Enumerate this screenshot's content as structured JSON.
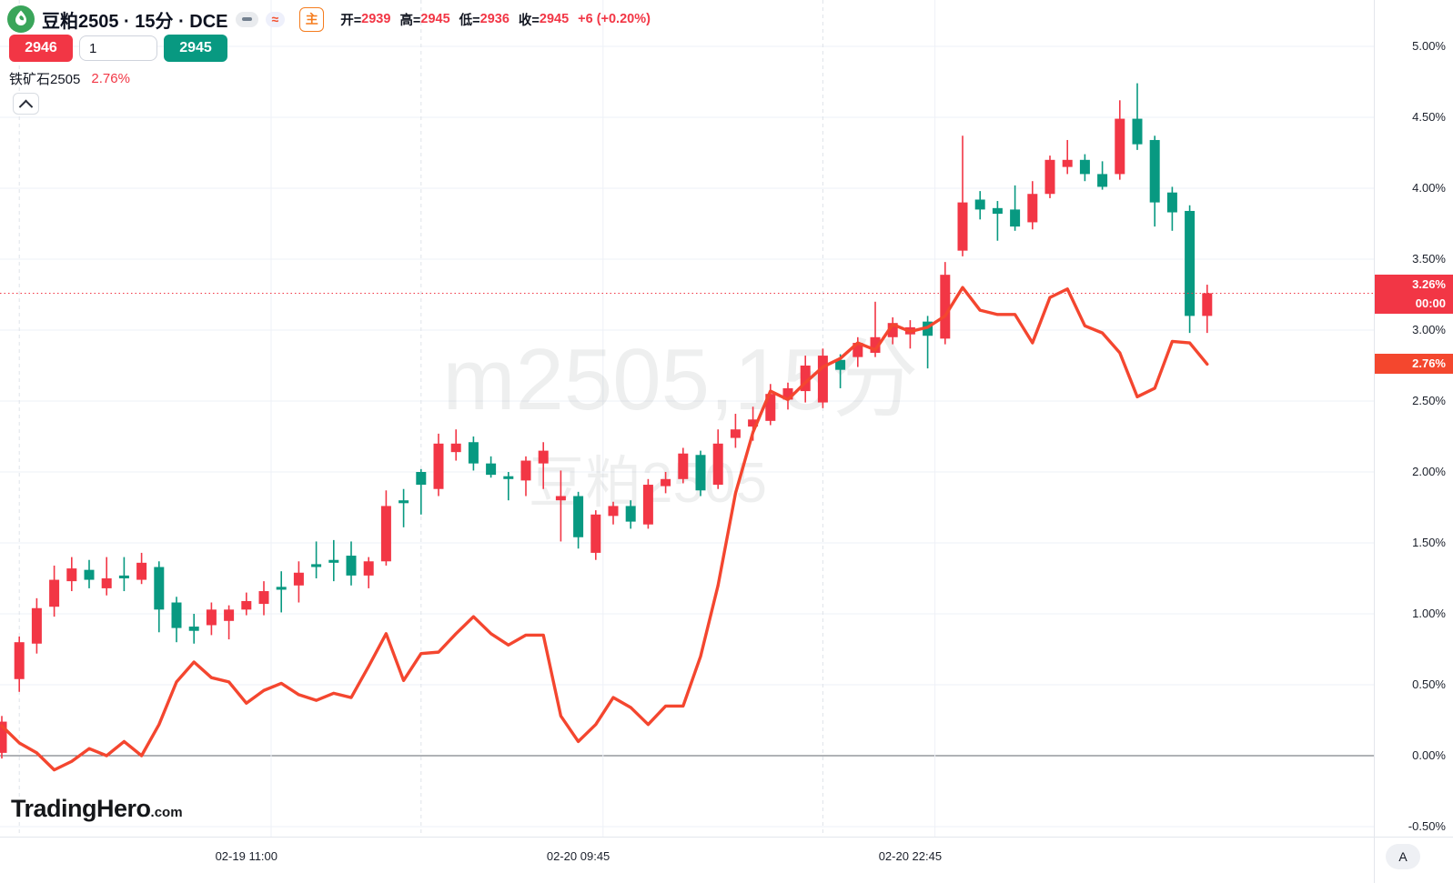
{
  "header": {
    "title": "豆粕2505 · 15分 · DCE",
    "badges": {
      "minimize": "dash",
      "approx": "≈",
      "main": "主"
    },
    "ohlc": [
      {
        "label": "开=",
        "value": "2939"
      },
      {
        "label": "高=",
        "value": "2945"
      },
      {
        "label": "低=",
        "value": "2936"
      },
      {
        "label": "收=",
        "value": "2945"
      }
    ],
    "change": "+6 (+0.20%)",
    "sell_button": "2946",
    "qty_input": "1",
    "buy_button": "2945"
  },
  "legend": {
    "compare_name": "铁矿石2505",
    "compare_value": "2.76%"
  },
  "watermark": {
    "line1": "m2505,15分",
    "line2": "豆粕2505"
  },
  "brand": {
    "name": "TradingHero",
    "suffix": ".com"
  },
  "price_axis": {
    "current_badge": {
      "value": "3.26%",
      "countdown": "00:00"
    },
    "compare_badge": "2.76%"
  },
  "corner_button": "A",
  "colors": {
    "up": "#f23645",
    "down": "#089981",
    "compare_line": "#f4462f",
    "grid": "#eef1f7",
    "grid_dashed": "#dfe3e9",
    "zero_line": "#5f646e",
    "dotted_line": "#f23645",
    "current_badge_bg": "#f23645",
    "compare_badge_bg": "#f4472e",
    "watermark": "#131722",
    "logo_green": "#3aa55a",
    "accent_orange": "#f57c1e"
  },
  "chart_data": {
    "type": "candlestick",
    "title": "豆粕2505 15分 DCE (m2505) with compare line 铁矿石2505",
    "unit": "percent_change",
    "ylabel": "%",
    "ylim": [
      -0.75,
      5.25
    ],
    "grid": true,
    "current_value_pct": 3.26,
    "compare_value_pct": 2.76,
    "y_ticks": [
      {
        "pct": 5.0,
        "label": "5.00%"
      },
      {
        "pct": 4.5,
        "label": "4.50%"
      },
      {
        "pct": 4.0,
        "label": "4.00%"
      },
      {
        "pct": 3.5,
        "label": "3.50%"
      },
      {
        "pct": 3.0,
        "label": "3.00%"
      },
      {
        "pct": 2.5,
        "label": "2.50%"
      },
      {
        "pct": 2.0,
        "label": "2.00%"
      },
      {
        "pct": 1.5,
        "label": "1.50%"
      },
      {
        "pct": 1.0,
        "label": "1.00%"
      },
      {
        "pct": 0.5,
        "label": "0.50%"
      },
      {
        "pct": 0.0,
        "label": "0.00%"
      },
      {
        "pct": -0.5,
        "label": "-0.50%"
      }
    ],
    "x_labels": [
      {
        "text": "02-19 11:00",
        "index": 14
      },
      {
        "text": "02-20 09:45",
        "index": 33
      },
      {
        "text": "02-20 22:45",
        "index": 52
      }
    ],
    "v_grid_dashed_index": [
      1,
      24,
      47
    ],
    "v_grid_solid_index": [
      15,
      34,
      53
    ],
    "candles_ohlc_pct": [
      [
        0.02,
        0.28,
        -0.02,
        0.24
      ],
      [
        0.54,
        0.84,
        0.45,
        0.8
      ],
      [
        0.79,
        1.11,
        0.72,
        1.04
      ],
      [
        1.05,
        1.34,
        0.98,
        1.24
      ],
      [
        1.23,
        1.4,
        1.16,
        1.32
      ],
      [
        1.31,
        1.38,
        1.18,
        1.24
      ],
      [
        1.18,
        1.4,
        1.13,
        1.25
      ],
      [
        1.27,
        1.4,
        1.16,
        1.25
      ],
      [
        1.24,
        1.43,
        1.21,
        1.36
      ],
      [
        1.33,
        1.37,
        0.87,
        1.03
      ],
      [
        1.08,
        1.12,
        0.8,
        0.9
      ],
      [
        0.91,
        1.0,
        0.79,
        0.88
      ],
      [
        0.92,
        1.08,
        0.85,
        1.03
      ],
      [
        0.95,
        1.06,
        0.82,
        1.03
      ],
      [
        1.03,
        1.15,
        0.99,
        1.09
      ],
      [
        1.07,
        1.23,
        0.99,
        1.16
      ],
      [
        1.19,
        1.3,
        1.01,
        1.17
      ],
      [
        1.2,
        1.37,
        1.08,
        1.29
      ],
      [
        1.35,
        1.51,
        1.25,
        1.33
      ],
      [
        1.38,
        1.52,
        1.23,
        1.36
      ],
      [
        1.41,
        1.51,
        1.2,
        1.27
      ],
      [
        1.27,
        1.4,
        1.18,
        1.37
      ],
      [
        1.37,
        1.87,
        1.34,
        1.76
      ],
      [
        1.8,
        1.88,
        1.61,
        1.78
      ],
      [
        2.0,
        2.02,
        1.7,
        1.91
      ],
      [
        1.88,
        2.27,
        1.83,
        2.2
      ],
      [
        2.14,
        2.3,
        2.08,
        2.2
      ],
      [
        2.21,
        2.25,
        2.01,
        2.06
      ],
      [
        2.06,
        2.11,
        1.96,
        1.98
      ],
      [
        1.97,
        2.0,
        1.8,
        1.95
      ],
      [
        1.94,
        2.11,
        1.83,
        2.08
      ],
      [
        2.06,
        2.21,
        1.88,
        2.15
      ],
      [
        1.8,
        2.01,
        1.51,
        1.83
      ],
      [
        1.83,
        1.86,
        1.46,
        1.54
      ],
      [
        1.43,
        1.73,
        1.38,
        1.7
      ],
      [
        1.69,
        1.79,
        1.63,
        1.76
      ],
      [
        1.76,
        1.8,
        1.6,
        1.65
      ],
      [
        1.63,
        1.95,
        1.6,
        1.91
      ],
      [
        1.9,
        2.0,
        1.85,
        1.95
      ],
      [
        1.95,
        2.17,
        1.92,
        2.13
      ],
      [
        2.12,
        2.15,
        1.83,
        1.87
      ],
      [
        1.91,
        2.3,
        1.88,
        2.2
      ],
      [
        2.24,
        2.41,
        2.17,
        2.3
      ],
      [
        2.32,
        2.46,
        2.22,
        2.37
      ],
      [
        2.36,
        2.62,
        2.33,
        2.55
      ],
      [
        2.51,
        2.63,
        2.44,
        2.59
      ],
      [
        2.57,
        2.82,
        2.49,
        2.75
      ],
      [
        2.49,
        2.87,
        2.45,
        2.82
      ],
      [
        2.79,
        2.83,
        2.59,
        2.72
      ],
      [
        2.81,
        2.95,
        2.74,
        2.91
      ],
      [
        2.84,
        3.2,
        2.81,
        2.95
      ],
      [
        2.95,
        3.09,
        2.9,
        3.05
      ],
      [
        2.97,
        3.07,
        2.87,
        3.02
      ],
      [
        3.06,
        3.1,
        2.73,
        2.96
      ],
      [
        2.94,
        3.48,
        2.9,
        3.39
      ],
      [
        3.56,
        4.37,
        3.52,
        3.9
      ],
      [
        3.92,
        3.98,
        3.78,
        3.85
      ],
      [
        3.86,
        3.91,
        3.63,
        3.82
      ],
      [
        3.85,
        4.02,
        3.7,
        3.73
      ],
      [
        3.76,
        4.05,
        3.71,
        3.96
      ],
      [
        3.96,
        4.23,
        3.93,
        4.2
      ],
      [
        4.15,
        4.34,
        4.1,
        4.2
      ],
      [
        4.2,
        4.24,
        4.05,
        4.1
      ],
      [
        4.1,
        4.19,
        3.99,
        4.01
      ],
      [
        4.1,
        4.62,
        4.06,
        4.49
      ],
      [
        4.49,
        4.74,
        4.27,
        4.31
      ],
      [
        4.34,
        4.37,
        3.73,
        3.9
      ],
      [
        3.97,
        4.01,
        3.7,
        3.83
      ],
      [
        3.84,
        3.88,
        2.98,
        3.1
      ],
      [
        3.1,
        3.32,
        2.98,
        3.26
      ]
    ],
    "compare_line_pct": [
      0.21,
      0.09,
      0.02,
      -0.1,
      -0.04,
      0.05,
      0.0,
      0.1,
      0.0,
      0.22,
      0.52,
      0.66,
      0.55,
      0.52,
      0.37,
      0.46,
      0.51,
      0.43,
      0.39,
      0.44,
      0.41,
      0.63,
      0.86,
      0.53,
      0.72,
      0.73,
      0.86,
      0.98,
      0.86,
      0.78,
      0.85,
      0.85,
      0.28,
      0.1,
      0.22,
      0.41,
      0.34,
      0.22,
      0.35,
      0.35,
      0.7,
      1.2,
      1.85,
      2.28,
      2.57,
      2.51,
      2.63,
      2.74,
      2.8,
      2.91,
      2.86,
      3.04,
      2.99,
      3.02,
      3.1,
      3.3,
      3.14,
      3.11,
      3.11,
      2.91,
      3.23,
      3.29,
      3.03,
      2.98,
      2.84,
      2.53,
      2.59,
      2.92,
      2.91,
      2.76
    ]
  }
}
